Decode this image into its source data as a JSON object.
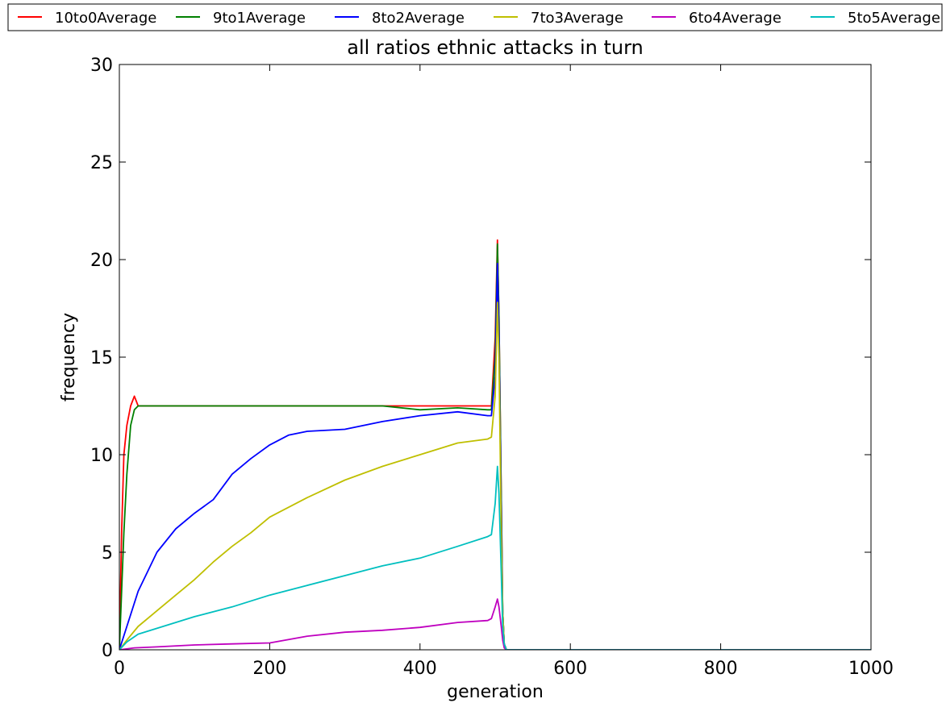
{
  "chart_data": {
    "type": "line",
    "title": "all ratios ethnic attacks in turn",
    "xlabel": "generation",
    "ylabel": "frequency",
    "xlim": [
      0,
      1000
    ],
    "ylim": [
      0,
      30
    ],
    "xticks": [
      0,
      200,
      400,
      600,
      800,
      1000
    ],
    "yticks": [
      0,
      5,
      10,
      15,
      20,
      25,
      30
    ],
    "grid": false,
    "legend_position": "top, above plot",
    "series": [
      {
        "name": "10to0Average",
        "color": "#ff0000",
        "x": [
          0,
          3,
          6,
          10,
          15,
          20,
          25,
          50,
          100,
          150,
          200,
          250,
          300,
          350,
          400,
          450,
          490,
          495,
          500,
          503,
          505,
          508,
          510,
          512,
          515,
          520,
          600,
          800,
          1000
        ],
        "y": [
          0,
          6,
          10,
          11.5,
          12.5,
          13,
          12.5,
          12.5,
          12.5,
          12.5,
          12.5,
          12.5,
          12.5,
          12.5,
          12.5,
          12.5,
          12.5,
          12.5,
          16,
          21,
          17,
          8,
          2,
          0.3,
          0,
          0,
          0,
          0,
          0
        ]
      },
      {
        "name": "9to1Average",
        "color": "#008000",
        "x": [
          0,
          3,
          6,
          10,
          15,
          20,
          25,
          50,
          100,
          150,
          200,
          250,
          300,
          350,
          400,
          450,
          490,
          495,
          500,
          503,
          505,
          508,
          510,
          512,
          515,
          520,
          600,
          800,
          1000
        ],
        "y": [
          0,
          3,
          6,
          9,
          11.5,
          12.3,
          12.5,
          12.5,
          12.5,
          12.5,
          12.5,
          12.5,
          12.5,
          12.5,
          12.3,
          12.4,
          12.3,
          12.3,
          15,
          20.8,
          17,
          8,
          2,
          0.3,
          0,
          0,
          0,
          0,
          0
        ]
      },
      {
        "name": "8to2Average",
        "color": "#0000ff",
        "x": [
          0,
          10,
          25,
          50,
          75,
          100,
          125,
          150,
          175,
          200,
          225,
          250,
          300,
          350,
          400,
          450,
          490,
          495,
          500,
          503,
          505,
          508,
          510,
          512,
          515,
          520,
          600,
          800,
          1000
        ],
        "y": [
          0,
          1.2,
          3,
          5,
          6.2,
          7,
          7.7,
          9,
          9.8,
          10.5,
          11,
          11.2,
          11.3,
          11.7,
          12,
          12.2,
          12,
          12,
          14,
          19.8,
          16,
          7,
          2,
          0.3,
          0,
          0,
          0,
          0,
          0
        ]
      },
      {
        "name": "7to3Average",
        "color": "#bfbf00",
        "x": [
          0,
          10,
          25,
          50,
          75,
          100,
          125,
          150,
          175,
          200,
          250,
          300,
          350,
          400,
          450,
          490,
          495,
          500,
          503,
          505,
          508,
          510,
          512,
          515,
          520,
          600,
          800,
          1000
        ],
        "y": [
          0,
          0.5,
          1.2,
          2,
          2.8,
          3.6,
          4.5,
          5.3,
          6,
          6.8,
          7.8,
          8.7,
          9.4,
          10,
          10.6,
          10.8,
          10.9,
          13,
          17.8,
          15,
          6,
          2,
          0.3,
          0,
          0,
          0,
          0,
          0
        ]
      },
      {
        "name": "6to4Average",
        "color": "#bf00bf",
        "x": [
          0,
          20,
          50,
          100,
          150,
          200,
          250,
          300,
          350,
          400,
          450,
          490,
          495,
          500,
          503,
          505,
          508,
          510,
          512,
          515,
          520,
          600,
          800,
          1000
        ],
        "y": [
          0,
          0.1,
          0.15,
          0.25,
          0.3,
          0.35,
          0.7,
          0.9,
          1.0,
          1.15,
          1.4,
          1.5,
          1.6,
          2.2,
          2.6,
          2.2,
          1.2,
          0.5,
          0.1,
          0,
          0,
          0,
          0,
          0
        ]
      },
      {
        "name": "5to5Average",
        "color": "#00bfbf",
        "x": [
          0,
          10,
          25,
          50,
          75,
          100,
          150,
          200,
          250,
          300,
          350,
          400,
          450,
          490,
          495,
          500,
          503,
          505,
          508,
          510,
          512,
          515,
          520,
          600,
          800,
          1000
        ],
        "y": [
          0,
          0.4,
          0.8,
          1.1,
          1.4,
          1.7,
          2.2,
          2.8,
          3.3,
          3.8,
          4.3,
          4.7,
          5.3,
          5.8,
          5.9,
          7.5,
          9.4,
          8,
          4,
          1.2,
          0.3,
          0,
          0,
          0,
          0,
          0
        ]
      }
    ]
  }
}
